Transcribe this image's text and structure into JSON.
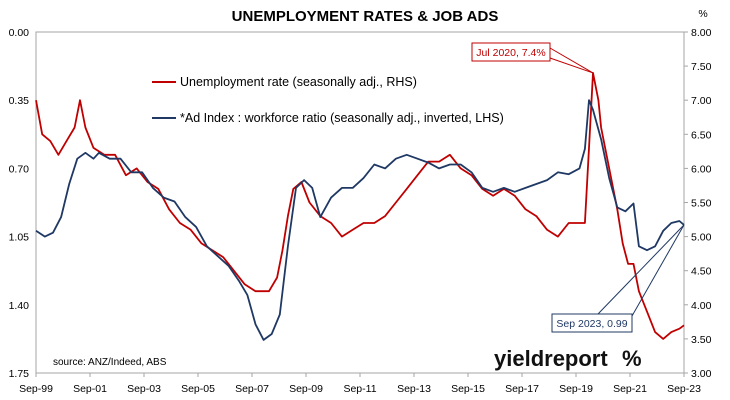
{
  "chart_data": {
    "type": "line",
    "title": "UNEMPLOYMENT RATES & JOB ADS",
    "right_axis_unit": "%",
    "x_ticks": [
      "Sep-99",
      "Sep-01",
      "Sep-03",
      "Sep-05",
      "Sep-07",
      "Sep-09",
      "Sep-11",
      "Sep-13",
      "Sep-15",
      "Sep-17",
      "Sep-19",
      "Sep-21",
      "Sep-23"
    ],
    "left_axis": {
      "ylim": [
        0.0,
        1.75
      ],
      "inverted": true,
      "ticks": [
        "0.00",
        "0.35",
        "0.70",
        "1.05",
        "1.40",
        "1.75"
      ]
    },
    "right_axis": {
      "ylim": [
        3.0,
        8.0
      ],
      "ticks": [
        "8.00",
        "7.50",
        "7.00",
        "6.50",
        "6.00",
        "5.50",
        "5.00",
        "4.50",
        "4.00",
        "3.50",
        "3.00"
      ]
    },
    "x_range": [
      1999.67,
      2023.67
    ],
    "series": [
      {
        "name": "Unemployment rate (seasonally adj., RHS)",
        "axis": "right",
        "color": "#c00000",
        "x": [
          1999.67,
          1999.9,
          2000.2,
          2000.5,
          2000.8,
          2001.1,
          2001.3,
          2001.5,
          2001.8,
          2002.2,
          2002.6,
          2003.0,
          2003.4,
          2003.8,
          2004.2,
          2004.6,
          2005.0,
          2005.4,
          2005.8,
          2006.2,
          2006.6,
          2007.0,
          2007.4,
          2007.8,
          2008.0,
          2008.3,
          2008.6,
          2008.8,
          2009.0,
          2009.2,
          2009.5,
          2009.8,
          2010.2,
          2010.6,
          2011.0,
          2011.4,
          2011.8,
          2012.2,
          2012.6,
          2013.0,
          2013.4,
          2013.8,
          2014.2,
          2014.6,
          2015.0,
          2015.4,
          2015.8,
          2016.2,
          2016.6,
          2017.0,
          2017.4,
          2017.8,
          2018.2,
          2018.6,
          2019.0,
          2019.4,
          2019.8,
          2020.0,
          2020.15,
          2020.3,
          2020.5,
          2020.6,
          2020.8,
          2021.0,
          2021.2,
          2021.4,
          2021.6,
          2021.8,
          2022.0,
          2022.3,
          2022.6,
          2022.9,
          2023.2,
          2023.5,
          2023.67
        ],
        "y": [
          7.0,
          6.5,
          6.4,
          6.2,
          6.4,
          6.6,
          7.0,
          6.6,
          6.3,
          6.2,
          6.2,
          5.9,
          6.0,
          5.8,
          5.7,
          5.4,
          5.2,
          5.1,
          4.9,
          4.8,
          4.7,
          4.5,
          4.3,
          4.2,
          4.2,
          4.2,
          4.4,
          4.8,
          5.3,
          5.7,
          5.8,
          5.5,
          5.3,
          5.2,
          5.0,
          5.1,
          5.2,
          5.2,
          5.3,
          5.5,
          5.7,
          5.9,
          6.1,
          6.1,
          6.2,
          6.0,
          5.9,
          5.7,
          5.6,
          5.7,
          5.6,
          5.4,
          5.3,
          5.1,
          5.0,
          5.2,
          5.2,
          5.2,
          6.3,
          7.4,
          7.0,
          6.6,
          6.2,
          5.8,
          5.4,
          4.9,
          4.6,
          4.6,
          4.2,
          3.9,
          3.6,
          3.5,
          3.6,
          3.65,
          3.7
        ]
      },
      {
        "name": "*Ad Index : workforce ratio (seasonally adj., inverted, LHS)",
        "axis": "left",
        "color": "#1f3864",
        "x": [
          1999.67,
          2000.0,
          2000.3,
          2000.6,
          2000.9,
          2001.2,
          2001.5,
          2001.8,
          2002.0,
          2002.4,
          2002.8,
          2003.2,
          2003.6,
          2004.0,
          2004.4,
          2004.8,
          2005.2,
          2005.6,
          2006.0,
          2006.4,
          2006.8,
          2007.2,
          2007.5,
          2007.8,
          2008.1,
          2008.4,
          2008.7,
          2009.0,
          2009.3,
          2009.6,
          2009.9,
          2010.2,
          2010.6,
          2011.0,
          2011.4,
          2011.8,
          2012.2,
          2012.6,
          2013.0,
          2013.4,
          2013.8,
          2014.2,
          2014.6,
          2015.0,
          2015.4,
          2015.8,
          2016.2,
          2016.6,
          2017.0,
          2017.4,
          2017.8,
          2018.2,
          2018.6,
          2019.0,
          2019.4,
          2019.8,
          2020.0,
          2020.15,
          2020.3,
          2020.6,
          2020.9,
          2021.2,
          2021.5,
          2021.8,
          2022.0,
          2022.3,
          2022.6,
          2022.9,
          2023.2,
          2023.5,
          2023.67
        ],
        "y": [
          1.02,
          1.05,
          1.03,
          0.95,
          0.78,
          0.65,
          0.62,
          0.65,
          0.62,
          0.65,
          0.65,
          0.72,
          0.72,
          0.8,
          0.85,
          0.87,
          0.95,
          1.0,
          1.1,
          1.15,
          1.2,
          1.28,
          1.35,
          1.5,
          1.58,
          1.55,
          1.45,
          1.1,
          0.8,
          0.76,
          0.8,
          0.95,
          0.85,
          0.8,
          0.8,
          0.75,
          0.68,
          0.7,
          0.65,
          0.63,
          0.65,
          0.67,
          0.7,
          0.68,
          0.68,
          0.72,
          0.8,
          0.82,
          0.8,
          0.82,
          0.8,
          0.78,
          0.76,
          0.72,
          0.73,
          0.7,
          0.6,
          0.35,
          0.4,
          0.55,
          0.75,
          0.9,
          0.92,
          0.88,
          1.1,
          1.12,
          1.1,
          1.02,
          0.98,
          0.97,
          0.99
        ]
      }
    ],
    "legend": [
      {
        "label": "Unemployment rate (seasonally adj., RHS)",
        "color": "#c00000"
      },
      {
        "label": "*Ad Index : workforce ratio (seasonally adj., inverted, LHS)",
        "color": "#1f3864"
      }
    ],
    "annotations": [
      {
        "label": "Jul 2020, 7.4%",
        "series": "red",
        "x": 2020.3,
        "y": 7.4,
        "color": "#c00000"
      },
      {
        "label": "Sep 2023, 0.99",
        "series": "blue",
        "x": 2023.67,
        "y": 0.99,
        "color": "#1f3864"
      }
    ],
    "source": "source: ANZ/Indeed, ABS",
    "brand": {
      "text": "yieldreport",
      "symbol": "%",
      "symbol_color": "#c00000"
    },
    "grid": false
  }
}
